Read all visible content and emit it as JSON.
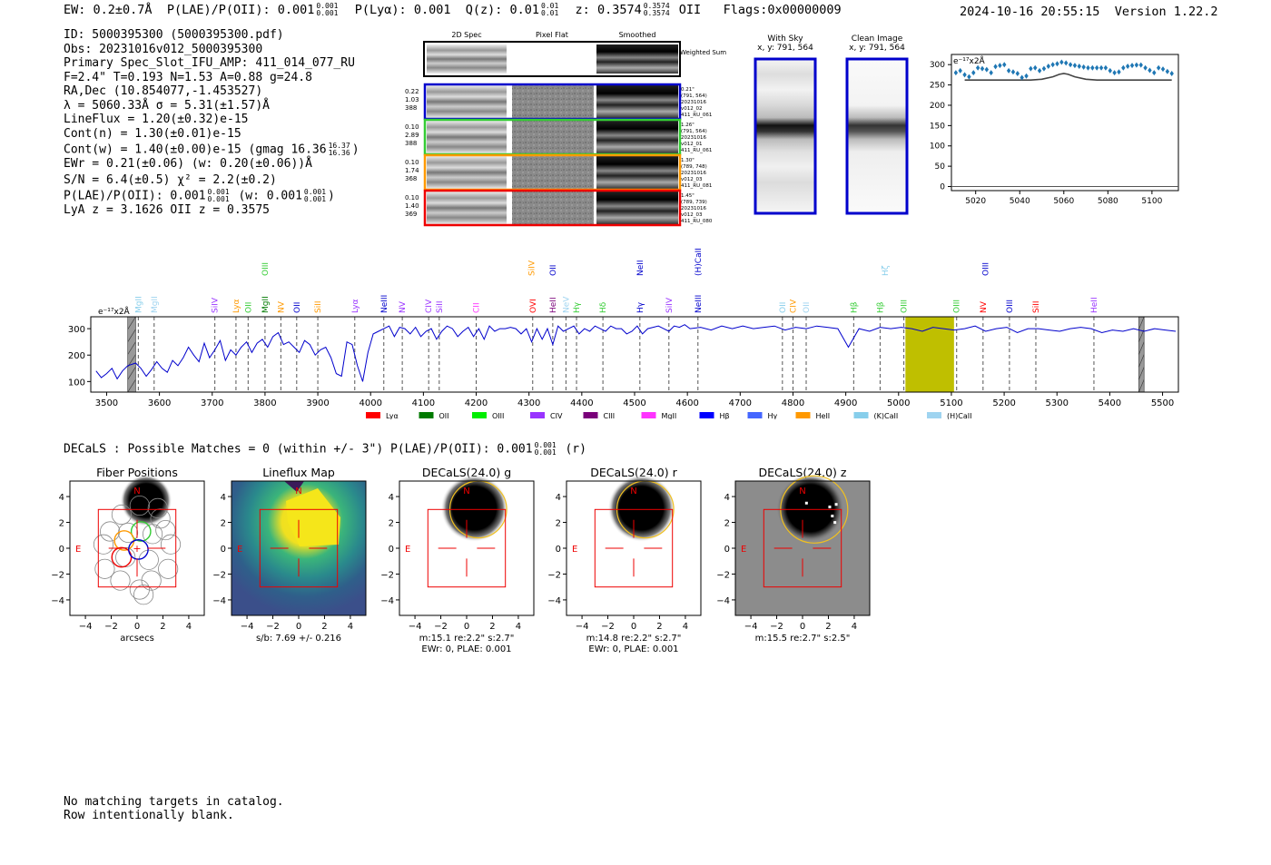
{
  "header": {
    "ew_label": "EW:",
    "ew_value": "0.2±0.7Å",
    "plae_label": "P(LAE)/P(OII):",
    "plae_value": "0.001",
    "plae_hi": "0.001",
    "plae_lo": "0.001",
    "plya_label": "P(Lyα):",
    "plya_value": "0.001",
    "qz_label": "Q(z):",
    "qz_value": "0.01",
    "qz_hi": "0.01",
    "qz_lo": "0.01",
    "z_label": "z:",
    "z_value": "0.3574",
    "z_hi": "0.3574",
    "z_lo": "0.3574",
    "z_line": "OII",
    "flags": "Flags:0x00000009",
    "datetime": "2024-10-16 20:55:15",
    "version": "Version 1.22.2"
  },
  "info": {
    "lines": [
      "ID: 5000395300 (5000395300.pdf)",
      "Obs: 20231016v012_5000395300",
      "Primary Spec_Slot_IFU_AMP: 411_014_077_RU",
      "F=2.4\"  T=0.193  N=1.53  A=0.88  g=24.8",
      "RA,Dec (10.854077,-1.453527)",
      "λ = 5060.33Å  σ = 5.31(±1.57)Å",
      "LineFlux = 1.20(±0.32)e-15",
      "Cont(n) = 1.30(±0.01)e-15"
    ],
    "contw": "Cont(w) = 1.40(±0.00)e-15 (gmag 16.36",
    "contw_hi": "16.37",
    "contw_lo": "16.36",
    "contw_end": ")",
    "ewr": "EWr = 0.21(±0.06) (w: 0.20(±0.06))Å",
    "sn": "S/N = 6.4(±0.5)  χ² = 2.2(±0.2)",
    "plae": "P(LAE)/P(OII): 0.001",
    "plae_hi": "0.001",
    "plae_lo": "0.001",
    "plae_w": "(w: 0.001",
    "plae_w_hi": "0.001",
    "plae_w_lo": "0.001",
    "plae_w_end": ")",
    "lya": "LyA z = 3.1626  OII z = 0.3575"
  },
  "cutouts": {
    "col_2d": "2D Spec",
    "col_flat": "Pixel Flat",
    "col_smooth": "Smoothed",
    "weighted": "Weighted Sum",
    "rows": [
      {
        "color": "#0000cc",
        "left": [
          "0.22",
          "1.03",
          "388"
        ],
        "right": [
          "0.21\"",
          "(791, 564)",
          "20231016",
          "v012_02",
          "411_RU_061"
        ]
      },
      {
        "color": "#33cc33",
        "left": [
          "0.10",
          "2.89",
          "388"
        ],
        "right": [
          "1.26\"",
          "(791, 564)",
          "20231016",
          "v012_01",
          "411_RU_061"
        ]
      },
      {
        "color": "#ff9900",
        "left": [
          "0.10",
          "1.74",
          "368"
        ],
        "right": [
          "1.30\"",
          "(789, 748)",
          "20231016",
          "v012_03",
          "411_RU_081"
        ]
      },
      {
        "color": "#ee0000",
        "left": [
          "0.10",
          "1.40",
          "369"
        ],
        "right": [
          "1.45\"",
          "(789, 739)",
          "20231016",
          "v012_03",
          "411_RU_080"
        ]
      }
    ],
    "with_sky": "With Sky",
    "with_sky_xy": "x, y: 791, 564",
    "clean": "Clean Image",
    "clean_xy": "x, y: 791, 564"
  },
  "zoom_chart": {
    "ylabel": "e⁻¹⁷x2Å",
    "xticks": [
      "5020",
      "5040",
      "5060",
      "5080",
      "5100"
    ],
    "yticks": [
      "0",
      "50",
      "100",
      "150",
      "200",
      "250",
      "300"
    ]
  },
  "chart_data": [
    {
      "type": "scatter",
      "id": "zoom",
      "ylabel": "e⁻¹⁷x2Å",
      "xlim": [
        5009,
        5112
      ],
      "ylim": [
        -10,
        325
      ],
      "series": [
        {
          "values_x": [
            5011,
            5013,
            5015,
            5017,
            5019,
            5021,
            5023,
            5025,
            5027,
            5029,
            5031,
            5033,
            5035,
            5037,
            5039,
            5041,
            5043,
            5045,
            5047,
            5049,
            5051,
            5053,
            5055,
            5057,
            5059,
            5061,
            5063,
            5065,
            5067,
            5069,
            5071,
            5073,
            5075,
            5077,
            5079,
            5081,
            5083,
            5085,
            5087,
            5089,
            5091,
            5093,
            5095,
            5097,
            5099,
            5101,
            5103,
            5105,
            5107,
            5109
          ],
          "values_y": [
            280,
            285,
            275,
            270,
            280,
            292,
            290,
            288,
            280,
            295,
            298,
            300,
            285,
            282,
            278,
            268,
            272,
            290,
            292,
            285,
            290,
            296,
            300,
            302,
            306,
            304,
            300,
            298,
            296,
            294,
            292,
            292,
            292,
            292,
            292,
            285,
            280,
            282,
            292,
            296,
            298,
            299,
            299,
            292,
            286,
            280,
            292,
            289,
            283,
            278
          ]
        },
        {
          "fit_x": [
            5015,
            5020,
            5030,
            5040,
            5045,
            5050,
            5055,
            5058,
            5060,
            5062,
            5065,
            5070,
            5075,
            5080,
            5090,
            5100,
            5109
          ],
          "fit_y": [
            262,
            262,
            262,
            262,
            262,
            264,
            270,
            276,
            278,
            276,
            270,
            264,
            262,
            262,
            262,
            262,
            262
          ]
        }
      ]
    },
    {
      "type": "line",
      "id": "spectrum",
      "ylabel": "e⁻¹⁷x2Å",
      "xlim": [
        3470,
        5530
      ],
      "ylim": [
        60,
        345
      ],
      "xticks": [
        3500,
        3600,
        3700,
        3800,
        3900,
        4000,
        4100,
        4200,
        4300,
        4400,
        4500,
        4600,
        4700,
        4800,
        4900,
        5000,
        5100,
        5200,
        5300,
        5400,
        5500
      ],
      "yticks": [
        100,
        200,
        300
      ],
      "highlight": [
        5013,
        5105
      ],
      "masked": [
        [
          3540,
          3555
        ],
        [
          5455,
          5465
        ]
      ],
      "x": [
        3480,
        3490,
        3500,
        3510,
        3520,
        3530,
        3540,
        3555,
        3565,
        3575,
        3585,
        3595,
        3605,
        3615,
        3625,
        3635,
        3645,
        3655,
        3665,
        3675,
        3685,
        3695,
        3705,
        3715,
        3725,
        3735,
        3745,
        3755,
        3765,
        3775,
        3785,
        3795,
        3805,
        3815,
        3825,
        3835,
        3845,
        3855,
        3865,
        3875,
        3885,
        3895,
        3905,
        3915,
        3925,
        3935,
        3945,
        3955,
        3965,
        3975,
        3985,
        3995,
        4005,
        4015,
        4025,
        4035,
        4045,
        4055,
        4065,
        4075,
        4085,
        4095,
        4105,
        4115,
        4125,
        4135,
        4145,
        4155,
        4165,
        4175,
        4185,
        4195,
        4205,
        4215,
        4225,
        4235,
        4245,
        4255,
        4265,
        4275,
        4285,
        4295,
        4305,
        4315,
        4325,
        4335,
        4345,
        4355,
        4365,
        4375,
        4385,
        4395,
        4405,
        4415,
        4425,
        4435,
        4445,
        4455,
        4465,
        4475,
        4485,
        4495,
        4505,
        4515,
        4525,
        4535,
        4545,
        4555,
        4565,
        4575,
        4585,
        4595,
        4605,
        4625,
        4645,
        4665,
        4685,
        4705,
        4725,
        4745,
        4765,
        4785,
        4805,
        4825,
        4845,
        4865,
        4885,
        4905,
        4925,
        4945,
        4965,
        4985,
        5005,
        5025,
        5045,
        5065,
        5085,
        5105,
        5125,
        5145,
        5165,
        5185,
        5205,
        5225,
        5245,
        5265,
        5285,
        5305,
        5325,
        5345,
        5365,
        5385,
        5405,
        5425,
        5445,
        5465,
        5485,
        5505,
        5525
      ],
      "y": [
        140,
        115,
        130,
        150,
        110,
        140,
        160,
        170,
        150,
        120,
        145,
        175,
        150,
        135,
        180,
        160,
        190,
        230,
        200,
        175,
        245,
        190,
        220,
        255,
        180,
        220,
        200,
        230,
        250,
        210,
        245,
        260,
        230,
        270,
        285,
        240,
        250,
        230,
        210,
        255,
        240,
        200,
        220,
        230,
        190,
        130,
        120,
        250,
        240,
        160,
        100,
        210,
        280,
        290,
        300,
        310,
        270,
        305,
        300,
        280,
        305,
        270,
        290,
        300,
        260,
        290,
        310,
        300,
        270,
        290,
        305,
        270,
        300,
        260,
        310,
        290,
        300,
        300,
        305,
        300,
        280,
        300,
        250,
        300,
        260,
        300,
        240,
        310,
        290,
        300,
        310,
        280,
        300,
        290,
        310,
        300,
        290,
        310,
        300,
        300,
        280,
        290,
        310,
        280,
        300,
        305,
        310,
        300,
        290,
        310,
        305,
        315,
        300,
        305,
        295,
        310,
        300,
        310,
        300,
        305,
        310,
        295,
        305,
        300,
        310,
        305,
        300,
        230,
        300,
        290,
        305,
        300,
        305,
        300,
        290,
        305,
        300,
        295,
        300,
        310,
        290,
        300,
        305,
        285,
        300,
        300,
        295,
        290,
        300,
        305,
        300,
        285,
        295,
        290,
        300,
        290,
        300,
        295,
        290
      ]
    }
  ],
  "spectrum_legend": [
    "Lyα",
    "OII",
    "OIII",
    "CIV",
    "CIII",
    "MgII",
    "Hβ",
    "Hγ",
    "HeII",
    "(K)CaII",
    "(H)CaII"
  ],
  "spectrum_legend_colors": [
    "#ff0000",
    "#007a00",
    "#00ee00",
    "#9933ff",
    "#7a007a",
    "#ff33ff",
    "#0000ff",
    "#4466ff",
    "#ff9900",
    "#87ceeb",
    "#9fd4f0"
  ],
  "spectrum_lines": [
    {
      "x": 3560,
      "label": "MgII",
      "color": "#87ceeb"
    },
    {
      "x": 3590,
      "label": "MgII",
      "color": "#9fd4f0"
    },
    {
      "x": 3705,
      "label": "SiIV",
      "color": "#9933ff"
    },
    {
      "x": 3745,
      "label": "Lyα",
      "color": "#ff9900"
    },
    {
      "x": 3768,
      "label": "OII",
      "color": "#33cc33"
    },
    {
      "x": 3800,
      "label": "MgII",
      "color": "#007a00"
    },
    {
      "x": 3830,
      "label": "NV",
      "color": "#ff9900"
    },
    {
      "x": 3860,
      "label": "OII",
      "color": "#0000cc"
    },
    {
      "x": 3900,
      "label": "SiII",
      "color": "#ff9900"
    },
    {
      "x": 3970,
      "label": "Lyα",
      "color": "#9933ff"
    },
    {
      "x": 4025,
      "label": "NeIII",
      "color": "#0000cc"
    },
    {
      "x": 4060,
      "label": "NV",
      "color": "#9933ff"
    },
    {
      "x": 4110,
      "label": "CIV",
      "color": "#9933ff"
    },
    {
      "x": 4130,
      "label": "SiII",
      "color": "#9933ff"
    },
    {
      "x": 4200,
      "label": "CII",
      "color": "#ff33ff"
    },
    {
      "x": 4307,
      "label": "OVI",
      "color": "#ff0000"
    },
    {
      "x": 4345,
      "label": "HeII",
      "color": "#7a007a"
    },
    {
      "x": 4370,
      "label": "NeV",
      "color": "#9fd4f0"
    },
    {
      "x": 4390,
      "label": "Hγ",
      "color": "#33cc33"
    },
    {
      "x": 4440,
      "label": "Hδ",
      "color": "#33cc33"
    },
    {
      "x": 4510,
      "label": "Hγ",
      "color": "#0000cc"
    },
    {
      "x": 4565,
      "label": "SiIV",
      "color": "#9933ff"
    },
    {
      "x": 4620,
      "label": "NeIII",
      "color": "#0000cc"
    },
    {
      "x": 4780,
      "label": "OII",
      "color": "#87ceeb"
    },
    {
      "x": 4800,
      "label": "CIV",
      "color": "#ff9900"
    },
    {
      "x": 4825,
      "label": "OII",
      "color": "#9fd4f0"
    },
    {
      "x": 4915,
      "label": "Hβ",
      "color": "#33cc33"
    },
    {
      "x": 4965,
      "label": "Hβ",
      "color": "#33cc33"
    },
    {
      "x": 5010,
      "label": "OIII",
      "color": "#33cc33"
    },
    {
      "x": 5110,
      "label": "OIII",
      "color": "#33cc33"
    },
    {
      "x": 5160,
      "label": "NV",
      "color": "#ff0000"
    },
    {
      "x": 5210,
      "label": "OIII",
      "color": "#0000cc"
    },
    {
      "x": 5260,
      "label": "SiII",
      "color": "#ff0000"
    },
    {
      "x": 5370,
      "label": "HeII",
      "color": "#9933ff"
    }
  ],
  "spectrum_upper_lines": [
    {
      "x": 3800,
      "label": "OIII",
      "color": "#33cc33"
    },
    {
      "x": 4305,
      "label": "SiIV",
      "color": "#ff9900"
    },
    {
      "x": 4345,
      "label": "OII",
      "color": "#0000cc"
    },
    {
      "x": 4510,
      "label": "NeII",
      "color": "#0000cc"
    },
    {
      "x": 4620,
      "label": "(H)CaII",
      "color": "#0000cc"
    },
    {
      "x": 4975,
      "label": "Hζ",
      "color": "#87ceeb"
    },
    {
      "x": 5165,
      "label": "OIII",
      "color": "#0000cc"
    }
  ],
  "decals": {
    "summary": "DECaLS : Possible Matches = 0 (within +/- 3\")  P(LAE)/P(OII): 0.001",
    "summary_hi": "0.001",
    "summary_lo": "0.001",
    "summary_end": "(r)",
    "panels": [
      {
        "title": "Fiber Positions",
        "caption": [
          "arcsecs"
        ]
      },
      {
        "title": "Lineflux Map",
        "caption": [
          "s/b: 7.69 +/- 0.216"
        ]
      },
      {
        "title": "DECaLS(24.0) g",
        "caption": [
          "m:15.1  re:2.2\"  s:2.7\"",
          "EWr: 0, PLAE: 0.001"
        ]
      },
      {
        "title": "DECaLS(24.0) r",
        "caption": [
          "m:14.8  re:2.2\"  s:2.7\"",
          "EWr: 0, PLAE: 0.001"
        ]
      },
      {
        "title": "DECaLS(24.0) z",
        "caption": [
          "m:15.5  re:2.7\"  s:2.5\""
        ]
      }
    ],
    "ticks": [
      "−4",
      "−2",
      "0",
      "2",
      "4"
    ],
    "north": "N",
    "east": "E"
  },
  "footer": {
    "line1": "No matching targets in catalog.",
    "line2": "Row intentionally blank."
  }
}
